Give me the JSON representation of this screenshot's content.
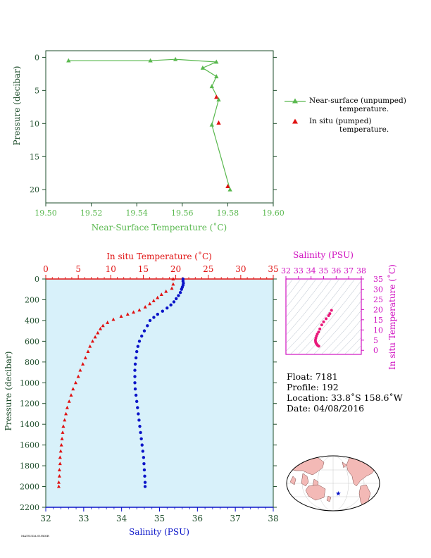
{
  "colors": {
    "green": "#59b84e",
    "red": "#e01010",
    "blue": "#0a14c8",
    "magenta": "#d010c0",
    "axis_dark": "#1e4d2b",
    "panel_bg": "#d8f1fa",
    "land": "#f3b9b6",
    "ocean": "#ffffff"
  },
  "top_chart": {
    "xlabel": "Near-Surface Temperature (˚C)",
    "ylabel": "Pressure (decibar)",
    "xticks": [
      "19.50",
      "19.52",
      "19.54",
      "19.56",
      "19.58",
      "19.60"
    ],
    "yticks": [
      "0",
      "5",
      "10",
      "15",
      "20"
    ],
    "legend": {
      "unpumped_line1": "Near-surface (unpumped)",
      "unpumped_line2": "temperature.",
      "pumped_line1": "In situ (pumped)",
      "pumped_line2": "temperature."
    }
  },
  "main_chart": {
    "top_label": "In situ Temperature (˚C)",
    "bottom_label": "Salinity (PSU)",
    "ylabel": "Pressure (decibar)",
    "temp_ticks": [
      "0",
      "5",
      "10",
      "15",
      "20",
      "25",
      "30",
      "35"
    ],
    "sal_ticks": [
      "32",
      "33",
      "34",
      "35",
      "36",
      "37",
      "38"
    ],
    "pres_ticks": [
      "0",
      "200",
      "400",
      "600",
      "800",
      "1000",
      "1200",
      "1400",
      "1600",
      "1800",
      "2000",
      "2200"
    ]
  },
  "ts_chart": {
    "top_label": "Salinity (PSU)",
    "right_label": "In situ Temperature (˚C)",
    "sal_ticks": [
      "32",
      "33",
      "34",
      "35",
      "36",
      "37",
      "38"
    ],
    "temp_ticks": [
      "0",
      "5",
      "10",
      "15",
      "20",
      "25",
      "30",
      "35"
    ]
  },
  "info": {
    "float": "Float:  7181",
    "profile": "Profile:  192",
    "location": "Location:  33.8˚S  158.6˚W",
    "date": "Date:  04/08/2016"
  },
  "credit": "MATSUDA SUBDIR",
  "chart_data": [
    {
      "type": "line",
      "name": "near-surface",
      "xlabel": "Near-Surface Temperature (˚C)",
      "ylabel": "Pressure (decibar)",
      "xlim": [
        19.5,
        19.6
      ],
      "ylim": [
        22,
        -1
      ],
      "series": [
        {
          "name": "Near-surface (unpumped) temperature.",
          "marker": "triangle",
          "points": [
            [
              19.51,
              0.5
            ],
            [
              19.546,
              0.5
            ],
            [
              19.557,
              0.3
            ],
            [
              19.575,
              0.7
            ],
            [
              19.569,
              1.6
            ],
            [
              19.575,
              2.9
            ],
            [
              19.573,
              4.4
            ],
            [
              19.576,
              6.4
            ],
            [
              19.573,
              10.2
            ],
            [
              19.581,
              20.0
            ]
          ]
        },
        {
          "name": "In situ (pumped) temperature.",
          "marker": "triangle",
          "points": [
            [
              19.575,
              6.0
            ],
            [
              19.576,
              9.9
            ],
            [
              19.58,
              19.5
            ]
          ]
        }
      ]
    },
    {
      "type": "line",
      "name": "profile",
      "ylabel": "Pressure (decibar)",
      "ylim": [
        2200,
        0
      ],
      "temp_lim": [
        0,
        35
      ],
      "sal_lim": [
        32,
        38
      ],
      "series": [
        {
          "name": "In situ Temperature (˚C)",
          "axis": "top",
          "marker": "triangle",
          "points": [
            [
              19.6,
              0
            ],
            [
              19.6,
              50
            ],
            [
              19.4,
              90
            ],
            [
              18.5,
              120
            ],
            [
              17.8,
              150
            ],
            [
              17.2,
              180
            ],
            [
              16.6,
              210
            ],
            [
              16.0,
              240
            ],
            [
              15.3,
              270
            ],
            [
              14.4,
              300
            ],
            [
              13.5,
              320
            ],
            [
              12.6,
              340
            ],
            [
              11.6,
              360
            ],
            [
              10.4,
              390
            ],
            [
              9.5,
              420
            ],
            [
              8.8,
              450
            ],
            [
              8.4,
              480
            ],
            [
              8.0,
              520
            ],
            [
              7.6,
              560
            ],
            [
              7.2,
              600
            ],
            [
              6.8,
              650
            ],
            [
              6.5,
              700
            ],
            [
              6.1,
              760
            ],
            [
              5.7,
              820
            ],
            [
              5.3,
              880
            ],
            [
              5.0,
              940
            ],
            [
              4.6,
              1000
            ],
            [
              4.2,
              1060
            ],
            [
              3.9,
              1120
            ],
            [
              3.6,
              1180
            ],
            [
              3.3,
              1240
            ],
            [
              3.1,
              1300
            ],
            [
              2.9,
              1360
            ],
            [
              2.7,
              1420
            ],
            [
              2.6,
              1480
            ],
            [
              2.5,
              1540
            ],
            [
              2.4,
              1600
            ],
            [
              2.3,
              1660
            ],
            [
              2.2,
              1720
            ],
            [
              2.2,
              1780
            ],
            [
              2.1,
              1840
            ],
            [
              2.1,
              1900
            ],
            [
              2.0,
              1960
            ],
            [
              2.0,
              2000
            ]
          ]
        },
        {
          "name": "Salinity (PSU)",
          "axis": "bottom",
          "marker": "dot",
          "points": [
            [
              35.62,
              0
            ],
            [
              35.62,
              20
            ],
            [
              35.63,
              40
            ],
            [
              35.62,
              60
            ],
            [
              35.6,
              80
            ],
            [
              35.58,
              100
            ],
            [
              35.55,
              130
            ],
            [
              35.5,
              160
            ],
            [
              35.44,
              190
            ],
            [
              35.38,
              220
            ],
            [
              35.3,
              250
            ],
            [
              35.2,
              280
            ],
            [
              35.08,
              310
            ],
            [
              34.95,
              340
            ],
            [
              34.85,
              370
            ],
            [
              34.75,
              400
            ],
            [
              34.68,
              450
            ],
            [
              34.6,
              500
            ],
            [
              34.53,
              550
            ],
            [
              34.47,
              600
            ],
            [
              34.43,
              650
            ],
            [
              34.4,
              700
            ],
            [
              34.38,
              760
            ],
            [
              34.36,
              820
            ],
            [
              34.35,
              880
            ],
            [
              34.35,
              940
            ],
            [
              34.35,
              1000
            ],
            [
              34.36,
              1060
            ],
            [
              34.38,
              1120
            ],
            [
              34.4,
              1180
            ],
            [
              34.42,
              1240
            ],
            [
              34.44,
              1300
            ],
            [
              34.46,
              1360
            ],
            [
              34.48,
              1420
            ],
            [
              34.5,
              1480
            ],
            [
              34.52,
              1540
            ],
            [
              34.54,
              1600
            ],
            [
              34.56,
              1660
            ],
            [
              34.58,
              1720
            ],
            [
              34.59,
              1780
            ],
            [
              34.6,
              1840
            ],
            [
              34.61,
              1900
            ],
            [
              34.62,
              1960
            ],
            [
              34.62,
              2000
            ]
          ]
        }
      ]
    },
    {
      "type": "scatter",
      "name": "t-s diagram",
      "xlabel": "Salinity (PSU)",
      "ylabel": "In situ Temperature (˚C)",
      "xlim": [
        32,
        38
      ],
      "ylim": [
        -2,
        35
      ],
      "points": [
        [
          35.63,
          19.6
        ],
        [
          35.5,
          18.0
        ],
        [
          35.4,
          17.0
        ],
        [
          35.2,
          15.5
        ],
        [
          35.0,
          14.0
        ],
        [
          34.85,
          12.5
        ],
        [
          34.7,
          10.5
        ],
        [
          34.6,
          9.0
        ],
        [
          34.5,
          8.0
        ],
        [
          34.43,
          7.0
        ],
        [
          34.38,
          6.0
        ],
        [
          34.35,
          5.0
        ],
        [
          34.36,
          4.2
        ],
        [
          34.4,
          3.5
        ],
        [
          34.46,
          3.0
        ],
        [
          34.5,
          2.6
        ],
        [
          34.56,
          2.3
        ],
        [
          34.62,
          2.0
        ]
      ]
    },
    {
      "type": "scatter",
      "name": "location map",
      "points": [
        {
          "lat": -33.8,
          "lon": -158.6,
          "marker": "star"
        }
      ]
    }
  ]
}
